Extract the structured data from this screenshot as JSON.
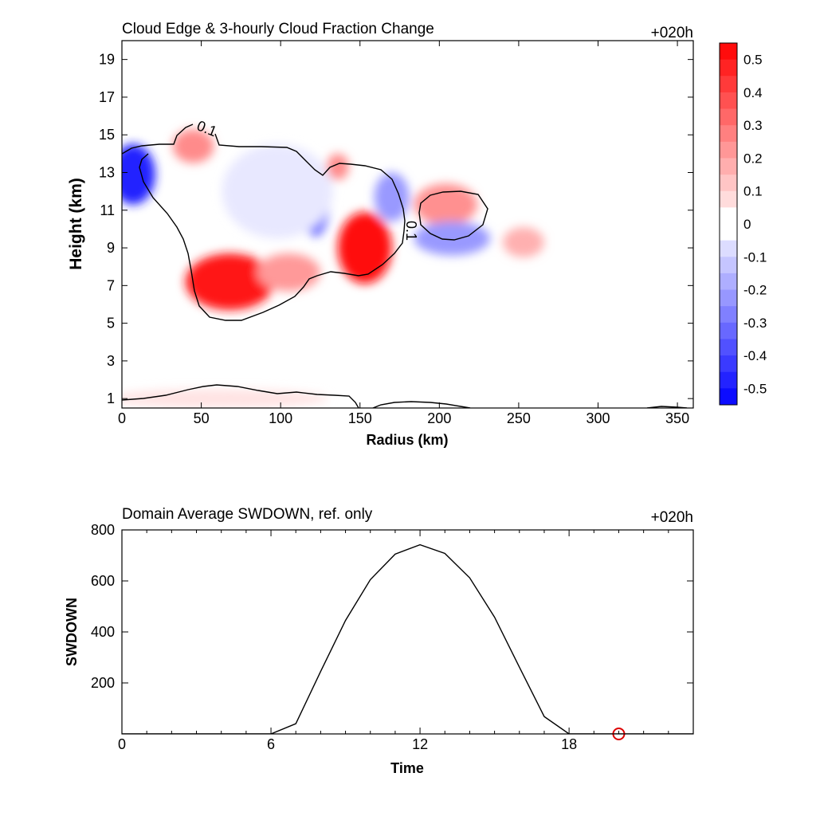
{
  "chart_data": [
    {
      "type": "heatmap",
      "title": "Cloud Edge & 3-hourly Cloud Fraction Change",
      "time_label": "+020h",
      "xlabel": "Radius (km)",
      "ylabel": "Height (km)",
      "xlim": [
        0,
        360
      ],
      "ylim": [
        0.5,
        20
      ],
      "xticks": [
        0,
        50,
        100,
        150,
        200,
        250,
        300,
        350
      ],
      "yticks": [
        1,
        3,
        5,
        7,
        9,
        11,
        13,
        15,
        17,
        19
      ],
      "grid": false,
      "colorbar": {
        "range": [
          -0.55,
          0.55
        ],
        "step": 0.05,
        "labels": [
          "0.5",
          "0.4",
          "0.3",
          "0.2",
          "0.1",
          "0",
          "-0.1",
          "-0.2",
          "-0.3",
          "-0.4",
          "-0.5"
        ],
        "label_values": [
          0.5,
          0.4,
          0.3,
          0.2,
          0.1,
          0,
          -0.1,
          -0.2,
          -0.3,
          -0.4,
          -0.5
        ],
        "color_neg": "#0000ff",
        "color_zero": "#ffffff",
        "color_pos": "#ff0000"
      },
      "blobs": [
        {
          "x": 7,
          "y": 12.9,
          "rx": 14,
          "ry": 1.6,
          "value": -0.48
        },
        {
          "x": 45,
          "y": 14.4,
          "rx": 13,
          "ry": 0.9,
          "value": 0.25
        },
        {
          "x": 68,
          "y": 7.2,
          "rx": 28,
          "ry": 1.5,
          "value": 0.5
        },
        {
          "x": 105,
          "y": 7.7,
          "rx": 20,
          "ry": 1.0,
          "value": 0.22
        },
        {
          "x": 122,
          "y": 11.6,
          "rx": 9,
          "ry": 2.0,
          "value": -0.33
        },
        {
          "x": 136,
          "y": 13.3,
          "rx": 7,
          "ry": 0.7,
          "value": 0.25
        },
        {
          "x": 153,
          "y": 9.0,
          "rx": 17,
          "ry": 1.9,
          "value": 0.52
        },
        {
          "x": 170,
          "y": 11.7,
          "rx": 11,
          "ry": 1.3,
          "value": -0.22
        },
        {
          "x": 204,
          "y": 11.3,
          "rx": 20,
          "ry": 1.1,
          "value": 0.24
        },
        {
          "x": 208,
          "y": 9.5,
          "rx": 24,
          "ry": 0.9,
          "value": -0.22
        },
        {
          "x": 253,
          "y": 9.3,
          "rx": 13,
          "ry": 0.8,
          "value": 0.17
        },
        {
          "x": 98,
          "y": 12.0,
          "rx": 35,
          "ry": 2.5,
          "value": -0.05
        },
        {
          "x": 60,
          "y": 1.0,
          "rx": 70,
          "ry": 0.5,
          "value": 0.06
        }
      ],
      "contours": [
        {
          "level": "0.1",
          "label_positions": [
            [
              52,
              14.3
            ],
            [
              178,
              9.4
            ]
          ]
        }
      ]
    },
    {
      "type": "line",
      "title": "Domain Average SWDOWN, ref. only",
      "time_label": "+020h",
      "xlabel": "Time",
      "ylabel": "SWDOWN",
      "xlim": [
        0,
        23
      ],
      "ylim": [
        0,
        800
      ],
      "xticks": [
        0,
        6,
        12,
        18
      ],
      "yticks": [
        200,
        400,
        600,
        800
      ],
      "grid": false,
      "series": [
        {
          "x": [
            0,
            1,
            2,
            3,
            4,
            5,
            6,
            7,
            8,
            9,
            10,
            11,
            12,
            13,
            14,
            15,
            16,
            17,
            18,
            19,
            20,
            21,
            22,
            23
          ],
          "values": [
            0,
            0,
            0,
            0,
            0,
            0,
            0,
            40,
            245,
            445,
            605,
            705,
            742,
            708,
            612,
            458,
            262,
            68,
            0,
            0,
            0,
            0,
            0,
            0
          ]
        }
      ],
      "marker": {
        "x": 20,
        "y": 0,
        "color": "#dd0000"
      }
    }
  ]
}
